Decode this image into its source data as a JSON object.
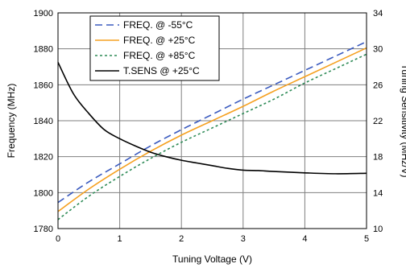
{
  "chart_data": {
    "type": "line",
    "xlabel": "Tuning Voltage (V)",
    "ylabel": "Frequency (MHz)",
    "y2label": "Tuning Sensitivity (MHz/V)",
    "xlim": [
      0,
      5
    ],
    "ylim": [
      1780,
      1900
    ],
    "y2lim": [
      10,
      34
    ],
    "x_ticks": [
      0,
      1,
      2,
      3,
      4,
      5
    ],
    "y_ticks": [
      1780,
      1800,
      1820,
      1840,
      1860,
      1880,
      1900
    ],
    "y2_ticks": [
      10,
      14,
      18,
      22,
      26,
      30,
      34
    ],
    "grid": true,
    "legend_position": "top-left",
    "series": [
      {
        "name": "FREQ. @ -55°C",
        "axis": "left",
        "color": "#3b5bbf",
        "dash": "9,5",
        "x": [
          0,
          0.5,
          1,
          1.5,
          2,
          2.5,
          3,
          3.5,
          4,
          4.5,
          5
        ],
        "y": [
          1794.5,
          1806,
          1816,
          1826,
          1835,
          1843.5,
          1852,
          1860,
          1868,
          1876,
          1884
        ]
      },
      {
        "name": "FREQ. @ +25°C",
        "axis": "left",
        "color": "#f5a020",
        "dash": "",
        "x": [
          0,
          0.5,
          1,
          1.5,
          2,
          2.5,
          3,
          3.5,
          4,
          4.5,
          5
        ],
        "y": [
          1789.5,
          1802,
          1813,
          1823,
          1832,
          1840,
          1848,
          1856.5,
          1864.5,
          1872.5,
          1880.5
        ]
      },
      {
        "name": "FREQ. @ +85°C",
        "axis": "left",
        "color": "#2e8b57",
        "dash": "3,3",
        "x": [
          0,
          0.5,
          1,
          1.5,
          2,
          2.5,
          3,
          3.5,
          4,
          4.5,
          5
        ],
        "y": [
          1785,
          1798,
          1809,
          1819,
          1828,
          1836,
          1844,
          1852,
          1861,
          1869,
          1877
        ]
      },
      {
        "name": "T.SENS @ +25°C",
        "axis": "right",
        "color": "#000000",
        "dash": "",
        "x": [
          0,
          0.25,
          0.5,
          0.75,
          1,
          1.25,
          1.5,
          1.75,
          2,
          2.25,
          2.5,
          2.75,
          3,
          3.25,
          3.5,
          4,
          4.5,
          5
        ],
        "y": [
          28.5,
          25.0,
          22.8,
          21.0,
          20.0,
          19.2,
          18.5,
          18.0,
          17.6,
          17.3,
          17.0,
          16.7,
          16.5,
          16.45,
          16.35,
          16.2,
          16.1,
          16.15
        ]
      }
    ]
  }
}
